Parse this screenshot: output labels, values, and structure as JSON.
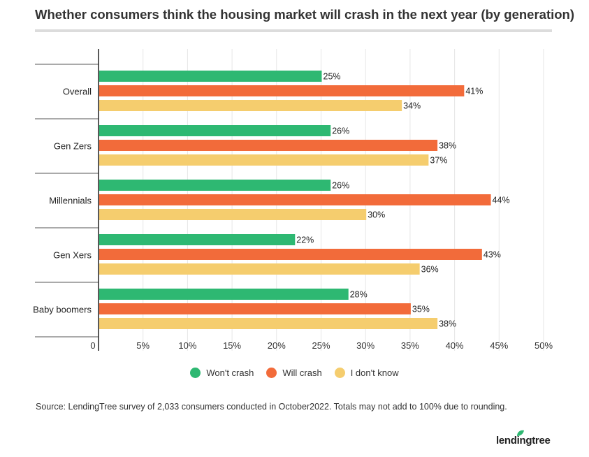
{
  "title": "Whether consumers think the housing market will crash in the next year (by generation)",
  "source": "Source: LendingTree survey of 2,033 consumers conducted in October2022. Totals may not add to 100% due to rounding.",
  "logo_text": "lendingtree",
  "colors": {
    "wont_crash": "#2eb872",
    "will_crash": "#f26b3a",
    "dont_know": "#f5cd6e"
  },
  "chart_data": {
    "type": "bar",
    "orientation": "horizontal",
    "categories": [
      "Overall",
      "Gen Zers",
      "Millennials",
      "Gen Xers",
      "Baby boomers"
    ],
    "series": [
      {
        "name": "Won't crash",
        "values": [
          25,
          26,
          26,
          22,
          28
        ]
      },
      {
        "name": "Will crash",
        "values": [
          41,
          38,
          44,
          43,
          35
        ]
      },
      {
        "name": "I don't know",
        "values": [
          34,
          37,
          30,
          36,
          38
        ]
      }
    ],
    "x_ticks": [
      "0",
      "5%",
      "10%",
      "15%",
      "20%",
      "25%",
      "30%",
      "35%",
      "40%",
      "45%",
      "50%"
    ],
    "xlim": [
      0,
      50
    ],
    "value_suffix": "%",
    "grid": "vertical",
    "legend_position": "bottom"
  }
}
